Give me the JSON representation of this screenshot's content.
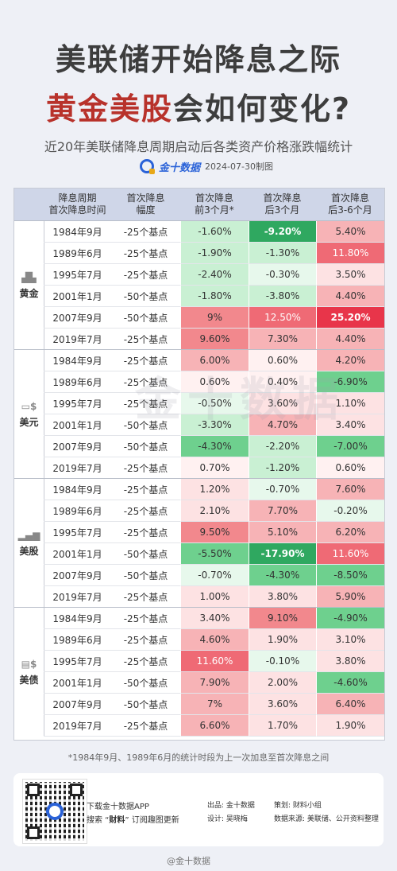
{
  "header": {
    "title_line1": "美联储开始降息之际",
    "title_line2_red": "黄金美股",
    "title_line2_rest": "会如何变化?",
    "subtitle": "近20年美联储降息周期启动后各类资产价格涨跌幅统计",
    "brand": "金十数据",
    "date": "2024-07-30制图"
  },
  "table": {
    "headers": [
      "降息周期\n首次降息时间",
      "首次降息\n幅度",
      "首次降息\n前3个月*",
      "首次降息\n后3个月",
      "首次降息\n后3-6个月"
    ],
    "groups": [
      {
        "name": "黄金",
        "icon": "gold-bars-icon",
        "rows": [
          [
            "1984年9月",
            "-25个基点",
            "-1.60%",
            "-9.20%",
            "5.40%"
          ],
          [
            "1989年6月",
            "-25个基点",
            "-1.90%",
            "-1.30%",
            "11.80%"
          ],
          [
            "1995年7月",
            "-25个基点",
            "-2.40%",
            "-0.30%",
            "3.50%"
          ],
          [
            "2001年1月",
            "-50个基点",
            "-1.80%",
            "-3.80%",
            "4.40%"
          ],
          [
            "2007年9月",
            "-50个基点",
            "9%",
            "12.50%",
            "25.20%"
          ],
          [
            "2019年7月",
            "-25个基点",
            "9.60%",
            "7.30%",
            "4.40%"
          ]
        ]
      },
      {
        "name": "美元",
        "icon": "dollar-bill-icon",
        "rows": [
          [
            "1984年9月",
            "-25个基点",
            "6.00%",
            "0.60%",
            "4.20%"
          ],
          [
            "1989年6月",
            "-25个基点",
            "0.60%",
            "0.40%",
            "-6.90%"
          ],
          [
            "1995年7月",
            "-25个基点",
            "-0.50%",
            "3.60%",
            "1.10%"
          ],
          [
            "2001年1月",
            "-50个基点",
            "-3.30%",
            "4.70%",
            "3.40%"
          ],
          [
            "2007年9月",
            "-50个基点",
            "-4.30%",
            "-2.20%",
            "-7.00%"
          ],
          [
            "2019年7月",
            "-25个基点",
            "0.70%",
            "-1.20%",
            "0.60%"
          ]
        ]
      },
      {
        "name": "美股",
        "icon": "stock-chart-icon",
        "rows": [
          [
            "1984年9月",
            "-25个基点",
            "1.20%",
            "-0.70%",
            "7.60%"
          ],
          [
            "1989年6月",
            "-25个基点",
            "2.10%",
            "7.70%",
            "-0.20%"
          ],
          [
            "1995年7月",
            "-25个基点",
            "9.50%",
            "5.10%",
            "6.20%"
          ],
          [
            "2001年1月",
            "-50个基点",
            "-5.50%",
            "-17.90%",
            "11.60%"
          ],
          [
            "2007年9月",
            "-50个基点",
            "-0.70%",
            "-4.30%",
            "-8.50%"
          ],
          [
            "2019年7月",
            "-25个基点",
            "1.00%",
            "3.80%",
            "5.90%"
          ]
        ]
      },
      {
        "name": "美债",
        "icon": "bond-icon",
        "rows": [
          [
            "1984年9月",
            "-25个基点",
            "3.40%",
            "9.10%",
            "-4.90%"
          ],
          [
            "1989年6月",
            "-25个基点",
            "4.60%",
            "1.90%",
            "3.10%"
          ],
          [
            "1995年7月",
            "-25个基点",
            "11.60%",
            "-0.10%",
            "3.80%"
          ],
          [
            "2001年1月",
            "-50个基点",
            "7.90%",
            "2.00%",
            "-4.60%"
          ],
          [
            "2007年9月",
            "-50个基点",
            "7%",
            "3.60%",
            "6.40%"
          ],
          [
            "2019年7月",
            "-25个基点",
            "6.60%",
            "1.70%",
            "1.90%"
          ]
        ]
      }
    ]
  },
  "watermark": "金十数据",
  "footnote": "*1984年9月、1989年6月的统计时段为上一次加息至首次降息之间",
  "footer": {
    "download": "下载金十数据APP",
    "search_prefix": "搜索 “",
    "search_keyword": "财料",
    "search_suffix": "” 订阅趣图更新",
    "publisher": "出品: 金十数据",
    "planner": "策划: 财料小组",
    "designer": "设计: 吴晓梅",
    "source": "数据来源: 美联储、公开资料整理"
  },
  "weibo": "@金十数据",
  "colors": {
    "up_strong": "#f2888d",
    "up_mid": "#f7b3b6",
    "up_light": "#fde2e3",
    "down_strong": "#2fa860",
    "down_mid": "#6ed08e",
    "down_light": "#c9f0d3",
    "title_red": "#b8322b"
  }
}
